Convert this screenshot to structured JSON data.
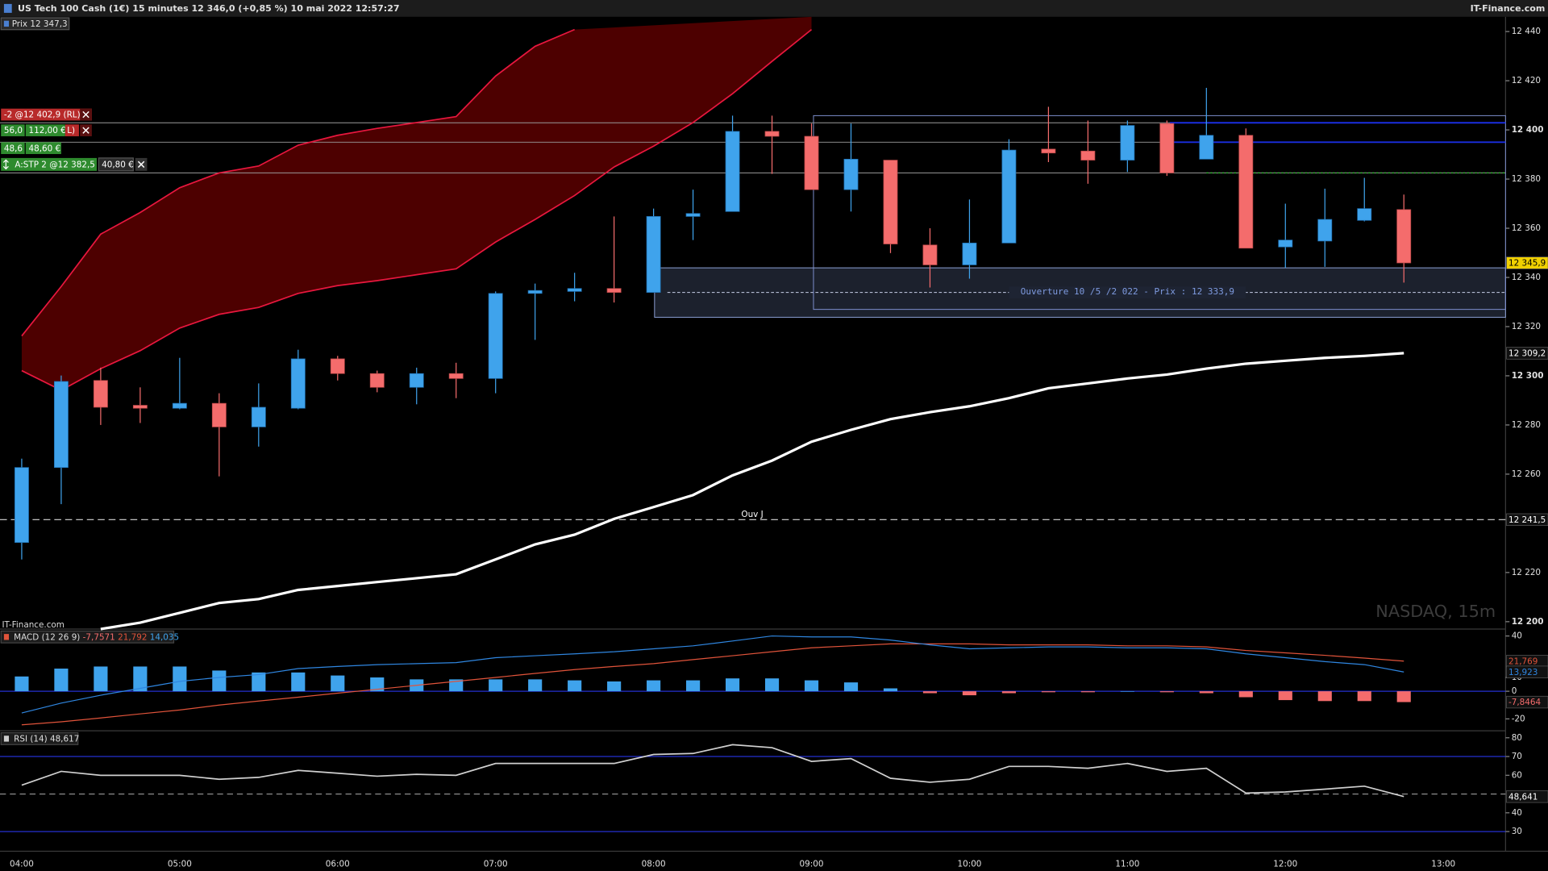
{
  "header": {
    "title": "US Tech 100 Cash (1€) 15 minutes 12 346,0 (+0,85 %) 10 mai 2022 12:57:27",
    "site": "IT-Finance.com",
    "price_tag": "Prix 12 347,3",
    "watermark_site": "IT-Finance.com",
    "watermark": "NASDAQ, 15m"
  },
  "orders": [
    {
      "text": "-2 @12 402,9 (RL)",
      "price": 12402.9
    },
    {
      "qty": "56,0",
      "amount": "112,00 €",
      "tag": "L)",
      "price": 12395.0
    },
    {
      "qty": "48,6",
      "amount": "48,60 €"
    },
    {
      "text": "A:STP  2 @12 382,5",
      "amount": "40,80 €",
      "price": 12382.5
    }
  ],
  "chart_data": [
    {
      "type": "candlestick",
      "categories": [
        "04:00",
        null,
        null,
        null,
        "05:00",
        null,
        null,
        null,
        "06:00",
        null,
        null,
        null,
        "07:00",
        null,
        null,
        null,
        "08:00",
        null,
        null,
        null,
        "09:00",
        null,
        null,
        null,
        "10:00",
        null,
        null,
        null,
        "11:00",
        null,
        null,
        null,
        "12:00",
        null,
        null,
        null,
        "13:00"
      ],
      "open": [
        12232.2,
        12262.7,
        12298.1,
        12288.0,
        12286.8,
        12288.8,
        12279.2,
        12286.8,
        12306.9,
        12300.9,
        12295.3,
        12300.9,
        12298.9,
        12333.5,
        12334.3,
        12335.5,
        12333.9,
        12364.8,
        12366.8,
        12399.4,
        12397.4,
        12375.7,
        12387.7,
        12353.2,
        12345.1,
        12354.0,
        12392.2,
        12391.4,
        12387.7,
        12402.6,
        12388.1,
        12397.8,
        12352.4,
        12354.8,
        12363.2,
        12367.6,
        null
      ],
      "high": [
        12266.3,
        12300.1,
        12303.3,
        12295.3,
        12307.3,
        12292.9,
        12296.9,
        12310.6,
        12308.1,
        12302.1,
        12303.3,
        12305.3,
        12334.3,
        12337.5,
        12341.9,
        12364.8,
        12368.0,
        12375.7,
        12405.8,
        12405.8,
        12402.6,
        12402.6,
        12387.7,
        12360.0,
        12371.7,
        12396.2,
        12409.4,
        12403.8,
        12403.8,
        12403.8,
        12417.1,
        12400.6,
        12370.0,
        12376.1,
        12380.5,
        12373.7,
        null
      ],
      "low": [
        12225.3,
        12247.8,
        12280.0,
        12280.8,
        12286.4,
        12259.1,
        12271.2,
        12286.4,
        12298.1,
        12293.3,
        12288.4,
        12290.9,
        12292.9,
        12314.6,
        12330.3,
        12329.8,
        12333.9,
        12355.2,
        12366.8,
        12382.1,
        12375.7,
        12366.8,
        12349.9,
        12335.9,
        12339.5,
        12354.0,
        12386.9,
        12378.1,
        12382.9,
        12381.3,
        12388.1,
        12351.9,
        12343.9,
        12344.3,
        12362.8,
        12337.9,
        null
      ],
      "close": [
        12262.7,
        12297.7,
        12287.2,
        12286.8,
        12288.8,
        12279.2,
        12287.2,
        12306.9,
        12300.9,
        12295.3,
        12300.9,
        12298.9,
        12333.5,
        12334.7,
        12335.5,
        12333.9,
        12364.8,
        12366.0,
        12399.4,
        12397.4,
        12375.7,
        12388.1,
        12353.6,
        12345.1,
        12354.0,
        12391.8,
        12390.6,
        12387.7,
        12401.8,
        12382.5,
        12397.8,
        12351.9,
        12355.2,
        12363.6,
        12368.0,
        12345.9,
        null
      ],
      "last_label": "12 345,9",
      "up_color": "#3fa3ec",
      "down_color": "#f46c6c",
      "ylim": [
        12197,
        12446
      ],
      "yticks": [
        {
          "value": 12440,
          "label": "12 440"
        },
        {
          "value": 12420,
          "label": "12 420"
        },
        {
          "value": 12400,
          "label": "12 400"
        },
        {
          "value": 12380,
          "label": "12 380"
        },
        {
          "value": 12360,
          "label": "12 360"
        },
        {
          "value": 12340,
          "label": "12 340"
        },
        {
          "value": 12320,
          "label": "12 320"
        },
        {
          "value": 12300,
          "label": "12 300"
        },
        {
          "value": 12280,
          "label": "12 280"
        },
        {
          "value": 12260,
          "label": "12 260"
        },
        {
          "value": 12220,
          "label": "12 220"
        },
        {
          "value": 12200,
          "label": "12 200"
        }
      ],
      "lines": [
        {
          "color": "#ffffff",
          "values": [
            null,
            null,
            12197.0,
            12199.6,
            12203.6,
            12207.6,
            12209.2,
            12212.9,
            12214.5,
            12216.1,
            12217.7,
            12219.3,
            12225.3,
            12231.4,
            12235.4,
            12241.8,
            12246.6,
            12251.5,
            12259.5,
            12265.5,
            12273.2,
            12278.0,
            12282.4,
            12285.2,
            12287.6,
            12290.9,
            12294.9,
            12296.9,
            12298.9,
            12300.5,
            12302.9,
            12304.9,
            12306.1,
            12307.3,
            12308.1,
            12309.2,
            null
          ],
          "last_label": "12 309,2"
        },
        {
          "color": "#e8173e",
          "values": [
            12316.2,
            12336.3,
            12357.6,
            12366.4,
            12376.5,
            12382.5,
            12385.3,
            12393.8,
            12397.8,
            12400.6,
            12403.0,
            12405.4,
            12421.9,
            12434.0,
            12440.8,
            null,
            null,
            null,
            null,
            null,
            null,
            null,
            null,
            null,
            null,
            null,
            null,
            null,
            null,
            null,
            null,
            null,
            null,
            null,
            null,
            null,
            null
          ]
        },
        {
          "color": "#e8173e",
          "values": [
            12302.1,
            12294.1,
            12302.9,
            12310.2,
            12319.4,
            12325.0,
            12327.8,
            12333.5,
            12336.7,
            12338.7,
            12341.1,
            12343.5,
            12354.4,
            12363.6,
            12373.3,
            12384.9,
            12393.4,
            12403.0,
            12414.7,
            12427.9,
            12440.8,
            null,
            null,
            null,
            null,
            null,
            null,
            null,
            null,
            null,
            null,
            null,
            null,
            null,
            null,
            null,
            null
          ]
        }
      ],
      "cloud_color": "#4d0000",
      "level": {
        "name": "Ouv J",
        "value": 12241.5,
        "label": "12 241,5"
      },
      "zone": {
        "label": "Ouverture 10 /5 /2 022  - Prix : 12 333,9",
        "value": 12333.9,
        "from": 16,
        "low": 12323.8,
        "high": 12343.9
      },
      "box": {
        "from": 20,
        "low": 12327.0,
        "high": 12405.8
      }
    },
    {
      "type": "macd",
      "legend": [
        "MACD (12 26 9)",
        "-7,7571",
        "21,792",
        "14,035"
      ],
      "histogram": {
        "values": [
          10.7,
          16.4,
          17.9,
          17.9,
          17.9,
          15.0,
          13.6,
          13.6,
          11.4,
          10.0,
          8.6,
          8.6,
          8.6,
          8.6,
          7.9,
          7.1,
          7.9,
          7.9,
          9.3,
          9.3,
          7.9,
          6.4,
          2.1,
          -1.4,
          -2.9,
          -1.4,
          -0.7,
          -0.7,
          0,
          -0.7,
          -1.4,
          -4.3,
          -6.4,
          -7.1,
          -7.1,
          -7.8464,
          null
        ],
        "last_label": "-7,8464",
        "up_color": "#3fa3ec",
        "down_color": "#f46c6c"
      },
      "series": [
        {
          "color": "#e0533a",
          "values": [
            -24.3,
            -22.1,
            -19.3,
            -16.4,
            -13.6,
            -10.0,
            -7.1,
            -4.3,
            -1.4,
            1.4,
            4.3,
            7.1,
            10.0,
            12.9,
            15.7,
            17.9,
            20.0,
            22.9,
            25.7,
            28.6,
            31.4,
            32.9,
            34.3,
            34.3,
            34.3,
            33.6,
            33.6,
            33.6,
            32.9,
            32.9,
            32.1,
            29.5,
            27.8,
            26.0,
            24.0,
            21.769,
            null
          ],
          "last_label": "21,769"
        },
        {
          "color": "#2f86e0",
          "values": [
            -15.7,
            -8.6,
            -2.9,
            2.1,
            7.1,
            10.0,
            12.1,
            16.4,
            17.9,
            19.3,
            20.0,
            20.7,
            24.3,
            25.7,
            27.1,
            28.6,
            30.7,
            32.9,
            36.4,
            40.0,
            39.3,
            39.3,
            37.1,
            33.6,
            30.7,
            31.4,
            32.1,
            32.1,
            31.4,
            31.4,
            30.7,
            27.1,
            24.3,
            21.4,
            19.3,
            13.923,
            null
          ],
          "last_label": "13,923"
        }
      ],
      "ylim": [
        -28.6,
        44.3
      ],
      "yticks": [
        40,
        10,
        0,
        -20
      ]
    },
    {
      "type": "rsi",
      "legend": "RSI (14) 48,617",
      "values": [
        54.7,
        62.1,
        60.0,
        60.0,
        60.0,
        57.9,
        58.9,
        62.6,
        61.1,
        59.5,
        60.5,
        60.0,
        66.3,
        66.3,
        66.3,
        66.3,
        71.1,
        71.6,
        76.3,
        74.7,
        67.4,
        68.9,
        58.4,
        56.3,
        57.9,
        64.7,
        64.7,
        63.7,
        66.3,
        62.1,
        63.7,
        50.5,
        51.1,
        52.6,
        54.2,
        48.641,
        null
      ],
      "last_label": "48,641",
      "color": "#d0d0d0",
      "bands": [
        70,
        30
      ],
      "mid": 50,
      "ylim": [
        19.5,
        83.2
      ],
      "yticks": [
        80,
        70,
        60,
        40,
        30
      ]
    }
  ]
}
